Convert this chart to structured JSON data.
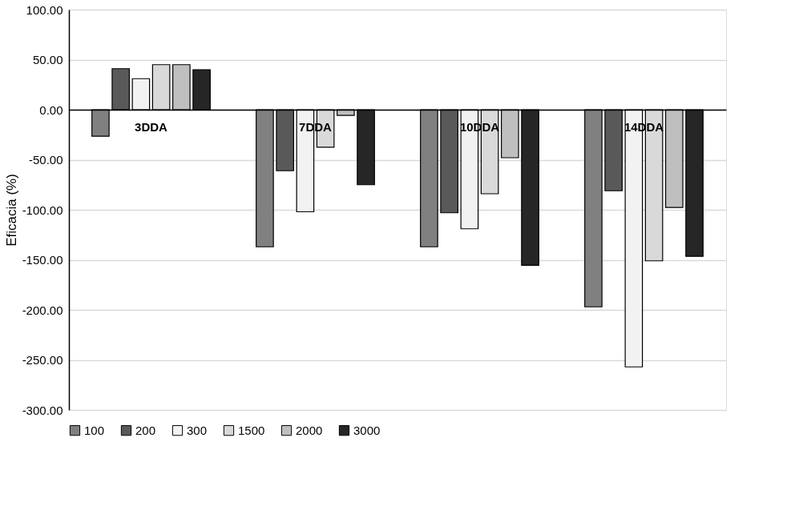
{
  "chart_data": {
    "type": "bar",
    "ylabel": "Eficacia (%)",
    "categories": [
      "3DDA",
      "7DDA",
      "10DDA",
      "14DDA"
    ],
    "series": [
      {
        "name": "100",
        "color": "#808080",
        "values": [
          -26.5,
          -137,
          -137,
          -197
        ]
      },
      {
        "name": "200",
        "color": "#595959",
        "values": [
          41,
          -61,
          -103,
          -81
        ]
      },
      {
        "name": "300",
        "color": "#f2f2f2",
        "values": [
          31,
          -102,
          -119,
          -257
        ]
      },
      {
        "name": "1500",
        "color": "#d9d9d9",
        "values": [
          45,
          -37.5,
          -84,
          -151
        ]
      },
      {
        "name": "2000",
        "color": "#bfbfbf",
        "values": [
          45,
          -5.7,
          -48,
          -97.7
        ]
      },
      {
        "name": "3000",
        "color": "#262626",
        "values": [
          40,
          -75,
          -155.5,
          -146.5
        ]
      }
    ],
    "ylim": [
      -300,
      100
    ],
    "yticks": [
      {
        "value": 100,
        "label": "100.00"
      },
      {
        "value": 50,
        "label": "50.00"
      },
      {
        "value": 0,
        "label": "0.00"
      },
      {
        "value": -50,
        "label": "-50.00"
      },
      {
        "value": -100,
        "label": "-100.00"
      },
      {
        "value": -150,
        "label": "-150.00"
      },
      {
        "value": -200,
        "label": "-200.00"
      },
      {
        "value": -250,
        "label": "-250.00"
      },
      {
        "value": -300,
        "label": "-300.00"
      }
    ],
    "grid": "y",
    "legend": "bottom"
  }
}
